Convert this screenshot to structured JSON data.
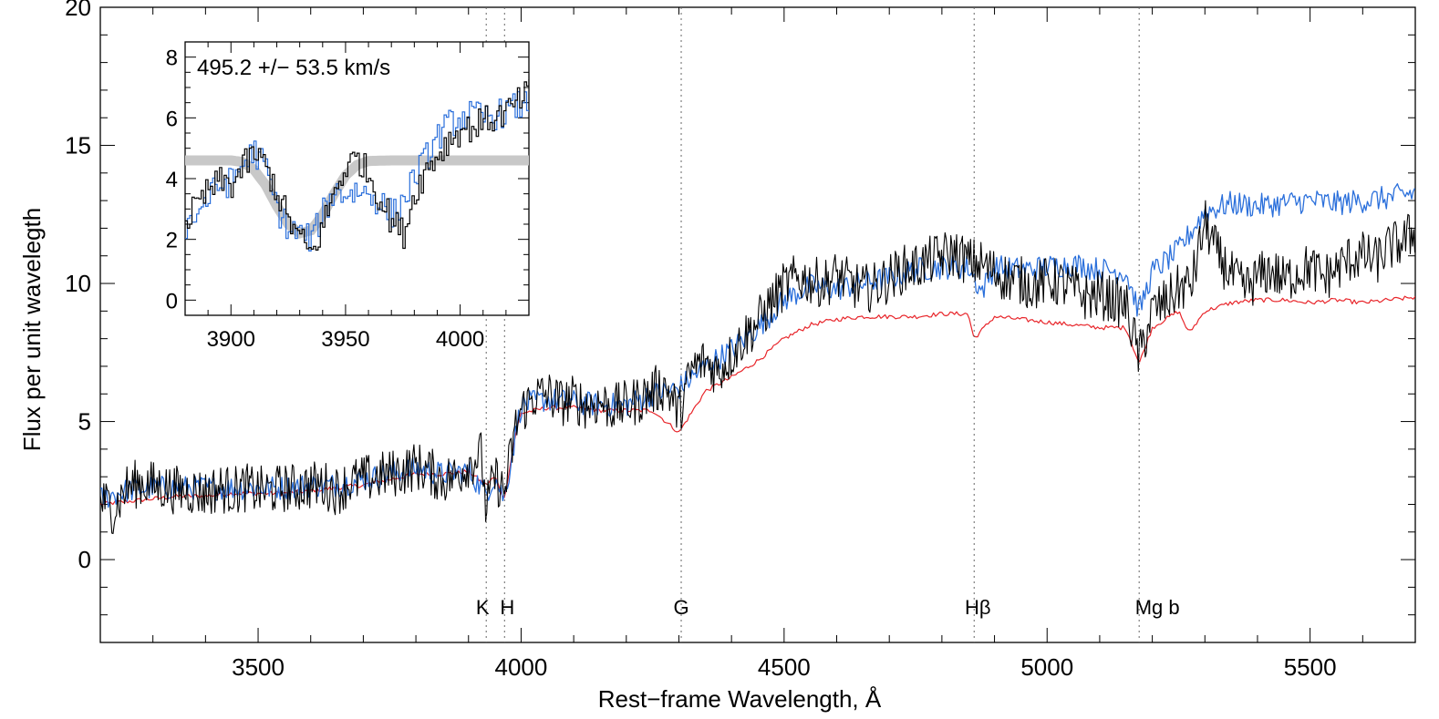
{
  "chart_data": [
    {
      "type": "line",
      "title": "",
      "xlabel": "Rest−frame Wavelength, Å",
      "ylabel": "Flux per unit wavelegth",
      "xlim": [
        3200,
        5700
      ],
      "ylim": [
        -3,
        20
      ],
      "xticks": [
        "3500",
        "4000",
        "4500",
        "5000",
        "5500"
      ],
      "yticks": [
        "0",
        "5",
        "10",
        "15",
        "20"
      ],
      "grid": false,
      "legend": "none",
      "line_markers": [
        {
          "label": "K",
          "x": 3933.7
        },
        {
          "label": "H",
          "x": 3968.5
        },
        {
          "label": "G",
          "x": 4304.4
        },
        {
          "label": "Hβ",
          "x": 4861.3
        },
        {
          "label": "Mg b",
          "x": 5175.0
        }
      ],
      "series": [
        {
          "color": "#000000",
          "x": [
            3200,
            3225,
            3250,
            3275,
            3300,
            3325,
            3350,
            3375,
            3400,
            3425,
            3450,
            3475,
            3500,
            3525,
            3550,
            3575,
            3600,
            3625,
            3650,
            3675,
            3700,
            3725,
            3750,
            3775,
            3800,
            3825,
            3850,
            3875,
            3900,
            3925,
            3933,
            3950,
            3968,
            3990,
            4000,
            4025,
            4050,
            4075,
            4100,
            4125,
            4150,
            4175,
            4200,
            4225,
            4250,
            4275,
            4300,
            4325,
            4350,
            4375,
            4400,
            4425,
            4450,
            4475,
            4500,
            4525,
            4550,
            4575,
            4600,
            4625,
            4650,
            4675,
            4700,
            4725,
            4750,
            4775,
            4800,
            4825,
            4850,
            4875,
            4900,
            4925,
            4950,
            4975,
            5000,
            5025,
            5050,
            5075,
            5100,
            5125,
            5150,
            5175,
            5200,
            5225,
            5250,
            5275,
            5300,
            5325,
            5350,
            5375,
            5400,
            5425,
            5450,
            5475,
            5500,
            5525,
            5550,
            5575,
            5600,
            5625,
            5650,
            5675,
            5700
          ],
          "y": [
            2.2,
            1.8,
            2.6,
            2.8,
            2.7,
            2.6,
            2.5,
            2.5,
            2.4,
            2.6,
            2.5,
            2.6,
            2.5,
            2.5,
            2.6,
            2.6,
            2.7,
            2.7,
            2.5,
            2.8,
            2.9,
            3.0,
            3.1,
            3.2,
            3.4,
            3.2,
            2.9,
            3.0,
            3.5,
            3.8,
            1.8,
            3.0,
            2.4,
            4.8,
            5.4,
            5.9,
            6.0,
            5.7,
            5.8,
            5.6,
            5.7,
            5.5,
            5.6,
            5.8,
            6.1,
            6.3,
            5.3,
            6.9,
            7.2,
            6.8,
            7.4,
            8.1,
            8.6,
            9.3,
            9.9,
            10.2,
            10.1,
            10.0,
            10.3,
            10.0,
            9.8,
            9.9,
            10.2,
            10.5,
            10.6,
            10.8,
            11.0,
            11.1,
            10.8,
            10.7,
            10.4,
            10.2,
            10.1,
            9.9,
            10.1,
            10.0,
            9.8,
            9.5,
            9.6,
            9.4,
            9.2,
            7.3,
            9.0,
            9.3,
            9.8,
            10.0,
            12.2,
            11.0,
            10.3,
            9.8,
            10.2,
            10.5,
            10.1,
            10.4,
            10.6,
            10.2,
            10.5,
            10.9,
            11.0,
            10.8,
            11.3,
            11.5,
            11.9
          ]
        },
        {
          "color": "#2a6fdb",
          "x": [
            3200,
            3250,
            3300,
            3350,
            3400,
            3450,
            3500,
            3550,
            3600,
            3650,
            3700,
            3750,
            3800,
            3850,
            3900,
            3933,
            3950,
            3968,
            3990,
            4000,
            4050,
            4100,
            4150,
            4200,
            4250,
            4300,
            4350,
            4400,
            4450,
            4500,
            4550,
            4600,
            4650,
            4700,
            4750,
            4800,
            4850,
            4875,
            4900,
            4950,
            5000,
            5050,
            5100,
            5150,
            5175,
            5200,
            5250,
            5300,
            5350,
            5400,
            5450,
            5500,
            5550,
            5600,
            5650,
            5700
          ],
          "y": [
            2.2,
            2.5,
            2.6,
            2.6,
            2.6,
            2.6,
            2.6,
            2.6,
            2.7,
            2.7,
            2.9,
            3.1,
            3.3,
            3.1,
            3.2,
            2.4,
            3.0,
            2.2,
            4.6,
            5.6,
            5.8,
            5.7,
            5.6,
            5.6,
            6.0,
            6.2,
            7.0,
            7.6,
            8.4,
            9.4,
            9.9,
            9.8,
            10.0,
            10.2,
            10.5,
            10.6,
            10.6,
            9.7,
            10.6,
            10.5,
            10.6,
            10.7,
            10.5,
            10.4,
            9.0,
            10.4,
            11.2,
            12.6,
            12.9,
            12.8,
            12.9,
            13.0,
            12.9,
            13.0,
            13.1,
            13.3
          ]
        },
        {
          "color": "#e8252a",
          "x": [
            3200,
            3250,
            3300,
            3350,
            3400,
            3450,
            3500,
            3550,
            3600,
            3650,
            3700,
            3750,
            3800,
            3850,
            3900,
            3933,
            3950,
            3968,
            3990,
            4000,
            4050,
            4100,
            4150,
            4200,
            4250,
            4300,
            4350,
            4400,
            4450,
            4500,
            4550,
            4600,
            4650,
            4700,
            4750,
            4800,
            4850,
            4861,
            4900,
            4950,
            5000,
            5050,
            5100,
            5150,
            5175,
            5200,
            5250,
            5270,
            5300,
            5350,
            5400,
            5450,
            5500,
            5550,
            5600,
            5650,
            5700
          ],
          "y": [
            2.0,
            2.1,
            2.2,
            2.3,
            2.3,
            2.4,
            2.4,
            2.4,
            2.5,
            2.6,
            2.7,
            2.9,
            3.1,
            3.1,
            3.2,
            2.7,
            3.0,
            2.2,
            4.6,
            5.3,
            5.5,
            5.5,
            5.4,
            5.4,
            5.4,
            4.6,
            6.1,
            6.6,
            7.2,
            8.0,
            8.5,
            8.7,
            8.8,
            8.8,
            8.8,
            8.9,
            8.9,
            8.0,
            8.8,
            8.7,
            8.6,
            8.5,
            8.4,
            8.4,
            7.1,
            8.4,
            9.0,
            8.2,
            9.0,
            9.3,
            9.4,
            9.4,
            9.3,
            9.4,
            9.3,
            9.4,
            9.5
          ]
        }
      ]
    },
    {
      "type": "line",
      "title": "",
      "annotation": "495.2 +/− 53.5 km/s",
      "xlim": [
        3880,
        4030
      ],
      "ylim": [
        -0.5,
        8.5
      ],
      "xticks": [
        "3900",
        "3950",
        "4000"
      ],
      "yticks": [
        "0",
        "2",
        "4",
        "6",
        "8"
      ],
      "legend": "none",
      "series": [
        {
          "color": "#000000",
          "x": [
            3880,
            3885,
            3890,
            3895,
            3900,
            3905,
            3910,
            3915,
            3920,
            3925,
            3930,
            3935,
            3940,
            3945,
            3950,
            3955,
            3960,
            3965,
            3970,
            3975,
            3980,
            3985,
            3990,
            3995,
            4000,
            4005,
            4010,
            4015,
            4020,
            4025,
            4030
          ],
          "y": [
            2.6,
            3.1,
            3.6,
            3.9,
            3.8,
            4.4,
            4.8,
            4.4,
            3.5,
            2.6,
            2.0,
            1.5,
            2.5,
            3.6,
            4.4,
            4.7,
            4.1,
            3.3,
            2.6,
            2.2,
            3.6,
            4.3,
            4.8,
            5.3,
            5.6,
            5.7,
            5.9,
            6.0,
            6.2,
            6.5,
            6.9
          ]
        },
        {
          "color": "#2a6fdb",
          "x": [
            3880,
            3885,
            3890,
            3895,
            3900,
            3905,
            3910,
            3915,
            3920,
            3925,
            3930,
            3935,
            3940,
            3945,
            3950,
            3955,
            3960,
            3965,
            3970,
            3975,
            3980,
            3985,
            3990,
            3995,
            4000,
            4005,
            4010,
            4015,
            4020,
            4025,
            4030
          ],
          "y": [
            2.4,
            2.9,
            3.4,
            3.8,
            3.9,
            4.5,
            4.9,
            4.3,
            3.0,
            2.3,
            2.2,
            2.0,
            2.9,
            3.6,
            3.5,
            3.6,
            3.5,
            3.2,
            2.8,
            3.3,
            4.1,
            4.7,
            5.4,
            5.8,
            6.0,
            6.1,
            6.0,
            6.1,
            6.2,
            6.4,
            6.5
          ]
        },
        {
          "color": "#c8c8c8",
          "x": [
            3880,
            3890,
            3900,
            3905,
            3910,
            3915,
            3920,
            3925,
            3930,
            3935,
            3940,
            3945,
            3950,
            3955,
            3960,
            3970,
            3980,
            4000,
            4030
          ],
          "y": [
            4.6,
            4.6,
            4.6,
            4.55,
            4.3,
            3.8,
            3.1,
            2.5,
            2.2,
            2.3,
            2.8,
            3.5,
            4.1,
            4.45,
            4.58,
            4.6,
            4.6,
            4.6,
            4.6
          ]
        }
      ]
    }
  ]
}
